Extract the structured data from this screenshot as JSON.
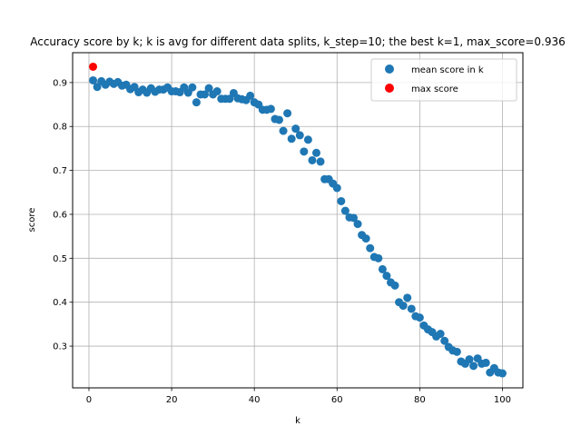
{
  "chart_data": {
    "type": "scatter",
    "title": "Accuracy score by k; k is avg for different data splits, k_step=10; the best k=1, max_score=0.936",
    "xlabel": "k",
    "ylabel": "score",
    "xlim": [
      -3.95,
      104.95
    ],
    "ylim": [
      0.205,
      0.968
    ],
    "xticks": [
      0,
      20,
      40,
      60,
      80,
      100
    ],
    "yticks": [
      0.3,
      0.4,
      0.5,
      0.6,
      0.7,
      0.8,
      0.9
    ],
    "grid": true,
    "legend_position": "top-right",
    "series": [
      {
        "name": "mean score in k",
        "color": "#1f77b4",
        "x": [
          1,
          2,
          3,
          4,
          5,
          6,
          7,
          8,
          9,
          10,
          11,
          12,
          13,
          14,
          15,
          16,
          17,
          18,
          19,
          20,
          21,
          22,
          23,
          24,
          25,
          26,
          27,
          28,
          29,
          30,
          31,
          32,
          33,
          34,
          35,
          36,
          37,
          38,
          39,
          40,
          41,
          42,
          43,
          44,
          45,
          46,
          47,
          48,
          49,
          50,
          51,
          52,
          53,
          54,
          55,
          56,
          57,
          58,
          59,
          60,
          61,
          62,
          63,
          64,
          65,
          66,
          67,
          68,
          69,
          70,
          71,
          72,
          73,
          74,
          75,
          76,
          77,
          78,
          79,
          80,
          81,
          82,
          83,
          84,
          85,
          86,
          87,
          88,
          89,
          90,
          91,
          92,
          93,
          94,
          95,
          96,
          97,
          98,
          99,
          100
        ],
        "y": [
          0.905,
          0.89,
          0.903,
          0.895,
          0.902,
          0.897,
          0.901,
          0.893,
          0.895,
          0.885,
          0.89,
          0.878,
          0.884,
          0.877,
          0.887,
          0.879,
          0.884,
          0.884,
          0.889,
          0.88,
          0.88,
          0.878,
          0.889,
          0.877,
          0.889,
          0.855,
          0.873,
          0.873,
          0.887,
          0.873,
          0.88,
          0.863,
          0.863,
          0.863,
          0.876,
          0.864,
          0.862,
          0.86,
          0.87,
          0.855,
          0.85,
          0.838,
          0.838,
          0.84,
          0.817,
          0.815,
          0.79,
          0.83,
          0.772,
          0.795,
          0.78,
          0.743,
          0.77,
          0.723,
          0.74,
          0.72,
          0.68,
          0.68,
          0.67,
          0.66,
          0.63,
          0.608,
          0.593,
          0.592,
          0.578,
          0.553,
          0.545,
          0.523,
          0.503,
          0.5,
          0.475,
          0.46,
          0.445,
          0.438,
          0.4,
          0.392,
          0.41,
          0.385,
          0.368,
          0.365,
          0.347,
          0.338,
          0.332,
          0.322,
          0.328,
          0.312,
          0.298,
          0.29,
          0.287,
          0.265,
          0.26,
          0.27,
          0.255,
          0.272,
          0.26,
          0.262,
          0.24,
          0.25,
          0.24,
          0.238
        ]
      },
      {
        "name": "max score",
        "color": "#ff0000",
        "x": [
          1
        ],
        "y": [
          0.936
        ]
      }
    ]
  }
}
